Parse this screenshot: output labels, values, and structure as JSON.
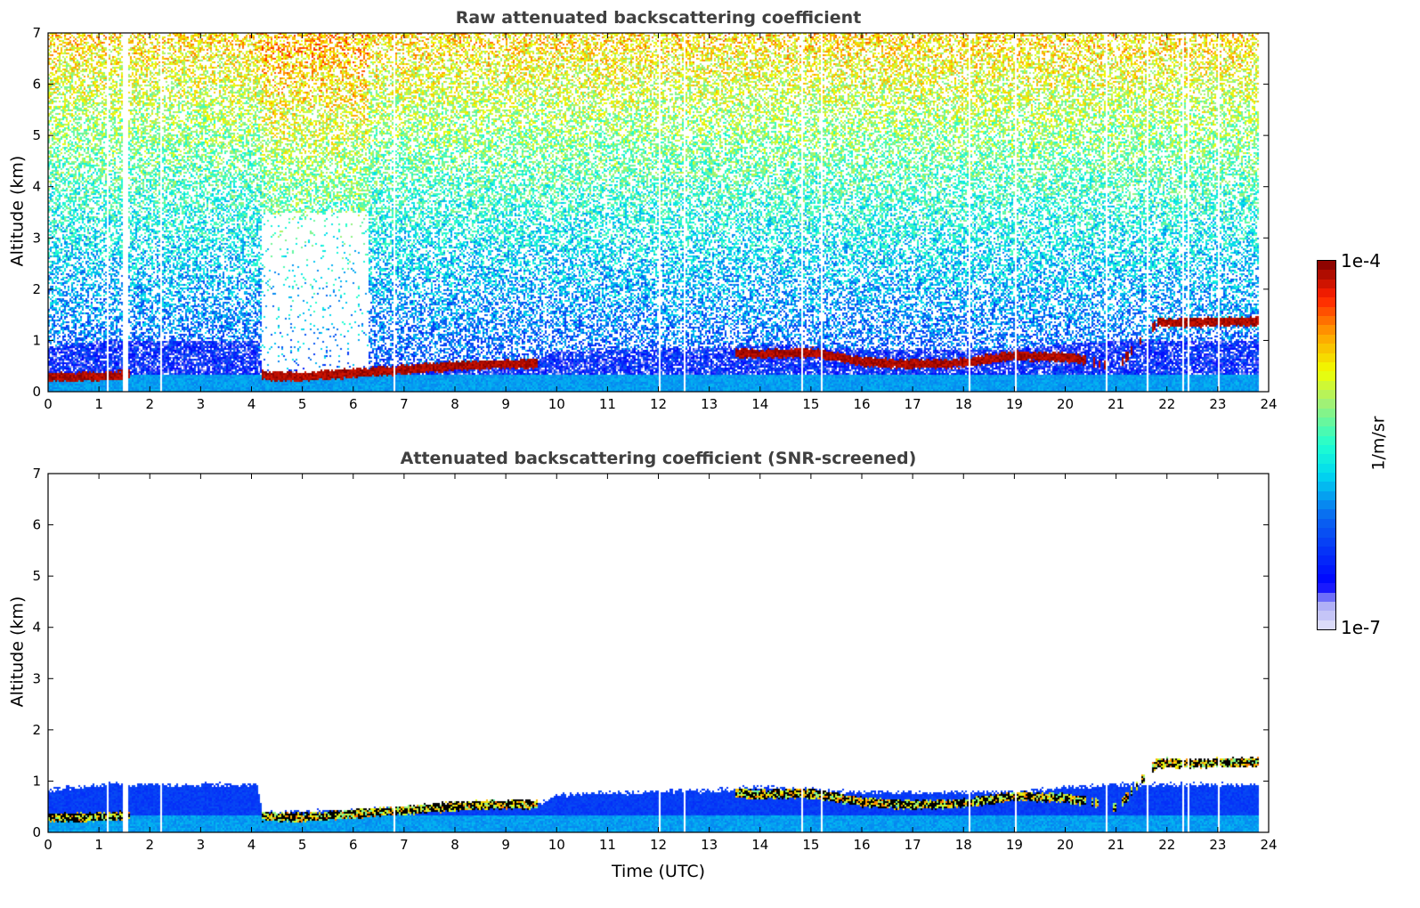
{
  "chart_data": [
    {
      "type": "heatmap",
      "title": "Raw attenuated backscattering coefficient",
      "xlabel": "",
      "ylabel": "Altitude (km)",
      "xlim": [
        0,
        24
      ],
      "ylim": [
        0,
        7
      ],
      "xticks": [
        0,
        1,
        2,
        3,
        4,
        5,
        6,
        7,
        8,
        9,
        10,
        11,
        12,
        13,
        14,
        15,
        16,
        17,
        18,
        19,
        20,
        21,
        22,
        23,
        24
      ],
      "yticks": [
        0,
        1,
        2,
        3,
        4,
        5,
        6,
        7
      ],
      "x_data_end": 23.8,
      "layer_height_km": {
        "hours": [
          0,
          0.5,
          1,
          2,
          4.2,
          5,
          6,
          7,
          8,
          9,
          9.6,
          13.5,
          14,
          15,
          16,
          17,
          18,
          19,
          20,
          20.4,
          21,
          21.8,
          22.5,
          23,
          23.8
        ],
        "values": [
          0.3,
          0.3,
          0.32,
          0.35,
          0.33,
          0.3,
          0.38,
          0.45,
          0.52,
          0.56,
          0.56,
          0.78,
          0.75,
          0.78,
          0.6,
          0.55,
          0.58,
          0.72,
          0.68,
          0.62,
          0.5,
          1.37,
          1.36,
          1.38,
          1.38
        ]
      },
      "boundary_layer_top_km": {
        "hours": [
          0,
          1,
          3,
          4.1,
          4.2,
          6,
          9.6,
          10,
          13,
          14,
          16,
          19,
          20,
          21,
          23.8
        ],
        "values": [
          0.9,
          1.0,
          1.0,
          1.0,
          0.45,
          0.5,
          0.62,
          0.8,
          0.88,
          0.95,
          0.85,
          0.85,
          0.95,
          1.0,
          1.0
        ]
      },
      "data_gaps_hours": [
        1.15,
        1.5,
        2.2,
        5.2,
        6.8,
        8.0,
        12.0,
        12.5,
        13.5,
        14.8,
        15.2,
        18.1,
        19.0,
        20.6,
        20.8,
        21.6,
        22.3,
        22.4,
        23.0
      ]
    },
    {
      "type": "heatmap",
      "title": "Attenuated backscattering coefficient (SNR-screened)",
      "xlabel": "Time (UTC)",
      "ylabel": "Altitude (km)",
      "xlim": [
        0,
        24
      ],
      "ylim": [
        0,
        7
      ],
      "xticks": [
        0,
        1,
        2,
        3,
        4,
        5,
        6,
        7,
        8,
        9,
        10,
        11,
        12,
        13,
        14,
        15,
        16,
        17,
        18,
        19,
        20,
        21,
        22,
        23,
        24
      ],
      "yticks": [
        0,
        1,
        2,
        3,
        4,
        5,
        6,
        7
      ]
    }
  ],
  "colorbar": {
    "label": "1/m/sr",
    "max_label": "1e-4",
    "min_label": "1e-7",
    "range_log10": [
      -7,
      -4
    ],
    "colors": [
      "#e6e6fa",
      "#a9a9f5",
      "#0000ff",
      "#0a64f0",
      "#00d8f0",
      "#20ffd0",
      "#a8f070",
      "#f0ff00",
      "#ffa000",
      "#ff2000",
      "#7f0000"
    ]
  }
}
